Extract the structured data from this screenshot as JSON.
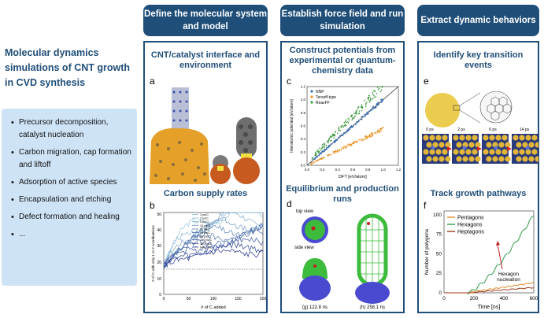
{
  "left": {
    "title": "Molecular dynamics simulations of CNT growth in CVD synthesis",
    "items": [
      "Precursor decomposition, catalyst nucleation",
      "Carbon migration, cap formation and liftoff",
      "Adsorption of active species",
      "Encapsulation and etching",
      "Defect formation and healing",
      "..."
    ]
  },
  "columns": [
    {
      "header": "Define the molecular system and model"
    },
    {
      "header": "Establish force field and run simulation"
    },
    {
      "header": "Extract dynamic behaviors"
    }
  ],
  "col1": {
    "a_title": "CNT/catalyst interface and environment",
    "a_label": "a",
    "b_title": "Carbon supply rates",
    "b_label": "b",
    "b_ylabel": "# of C with only 1 or 2 coordinations",
    "b_xlabel": "# of C added",
    "b_xticks": [
      "0",
      "50",
      "100",
      "150",
      "200"
    ],
    "b_yticks": [
      "0",
      "10",
      "20",
      "30",
      "40",
      "50"
    ],
    "b_legend": [
      "1 ps/C",
      "2 ps/C",
      "5 ps/C",
      "10 ps/C",
      "20 ps/C",
      "40 ps/C",
      "80 ps/C",
      "160 ps/C",
      "320 ps/C",
      "640 ps/C"
    ]
  },
  "col2": {
    "c_title": "Construct potentials from experimental or quantum-chemistry data",
    "c_label": "c",
    "c_xlabel": "DFT [eV/atom]",
    "c_ylabel": "Interatomic potential [eV/atom]",
    "c_ticks": [
      "0.0",
      "0.2",
      "0.4",
      "0.6",
      "0.8",
      "1.0",
      "1.2"
    ],
    "c_legend": [
      "NNP",
      "Tersoff-type",
      "ReaxFF"
    ],
    "d_title": "Equilibrium and production runs",
    "d_label": "d",
    "top_view": "top view",
    "side_view": "side view",
    "cap_g": "(g) 122.8 ns",
    "cap_h": "(h) 258.1 ns"
  },
  "col3": {
    "e_title": "Identify key transition events",
    "e_label": "e",
    "e_times": [
      "0 ps",
      "2 ps",
      "6 ps",
      "14 ps"
    ],
    "f_title": "Track growth pathways",
    "f_label": "f",
    "f_legend": [
      "Pentagons",
      "Hexagons",
      "Heptagons"
    ],
    "f_annotation": [
      "Hexagon",
      "nucleation"
    ],
    "f_xlabel": "Time [ns]",
    "f_ylabel": "Number of polygons",
    "f_xticks": [
      "0",
      "200",
      "400",
      "600"
    ],
    "f_yticks": [
      "0",
      "25",
      "50",
      "75",
      "100"
    ]
  },
  "colors": {
    "navy": "#1f4e79",
    "light_blue": "#cfe3f6",
    "nnp": "#3a6fb5",
    "tersoff": "#e8962a",
    "reaxff": "#3a9a3a",
    "pent": "#e08a2a",
    "hex": "#2e9a4a",
    "hept": "#a03a1a"
  }
}
